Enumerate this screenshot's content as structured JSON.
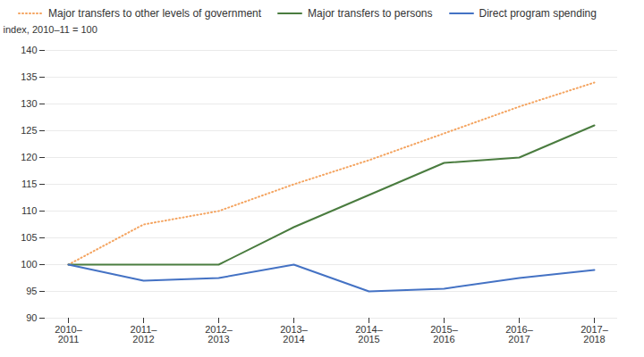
{
  "chart_data": {
    "type": "line",
    "categories": [
      "2010–\n2011",
      "2011–\n2012",
      "2012–\n2013",
      "2013–\n2014",
      "2014–\n2015",
      "2015–\n2016",
      "2016–\n2017",
      "2017–\n2018"
    ],
    "series": [
      {
        "name": "Major transfers to other levels of government",
        "color": "#F4A460",
        "line_style": "dotted",
        "values": [
          100,
          107.5,
          110,
          115,
          119.5,
          124.5,
          129.5,
          134
        ]
      },
      {
        "name": "Major transfers to persons",
        "color": "#4a7c3f",
        "line_style": "solid",
        "values": [
          100,
          100,
          100,
          107,
          113,
          119,
          120,
          126
        ]
      },
      {
        "name": "Direct program spending",
        "color": "#4472c4",
        "line_style": "solid",
        "values": [
          100,
          97,
          97.5,
          100,
          95,
          95.5,
          97.5,
          99
        ]
      }
    ],
    "ylabel": "index, 2010–11 = 100",
    "ylim": [
      90,
      140
    ],
    "yticks": [
      90,
      95,
      100,
      105,
      110,
      115,
      120,
      125,
      130,
      135,
      140
    ],
    "grid": true,
    "legend": "upper left"
  }
}
